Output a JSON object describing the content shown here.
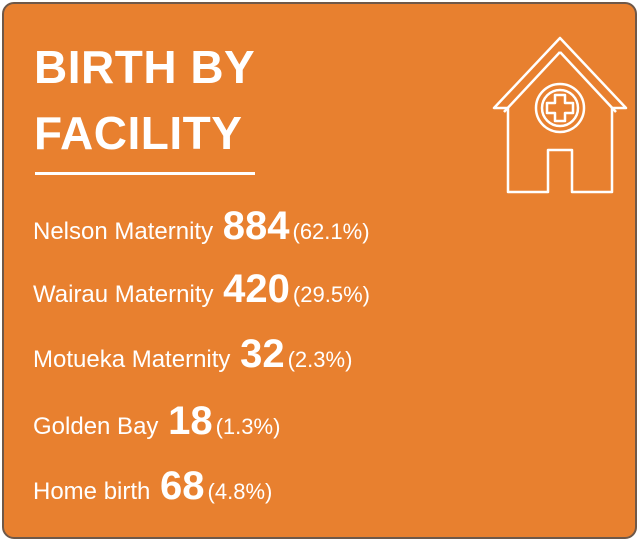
{
  "card": {
    "title": "BIRTH BY FACILITY",
    "items": [
      {
        "name": "Nelson Maternity",
        "count": 884,
        "share": "(62.1%)"
      },
      {
        "name": "Wairau Maternity",
        "count": 420,
        "share": "(29.5%)"
      },
      {
        "name": "Motueka Maternity",
        "count": 32,
        "share": "(2.3%)"
      },
      {
        "name": "Golden Bay",
        "count": 18,
        "share": "(1.3%)"
      },
      {
        "name": "Home birth",
        "count": 68,
        "share": "(4.8%)"
      }
    ]
  }
}
